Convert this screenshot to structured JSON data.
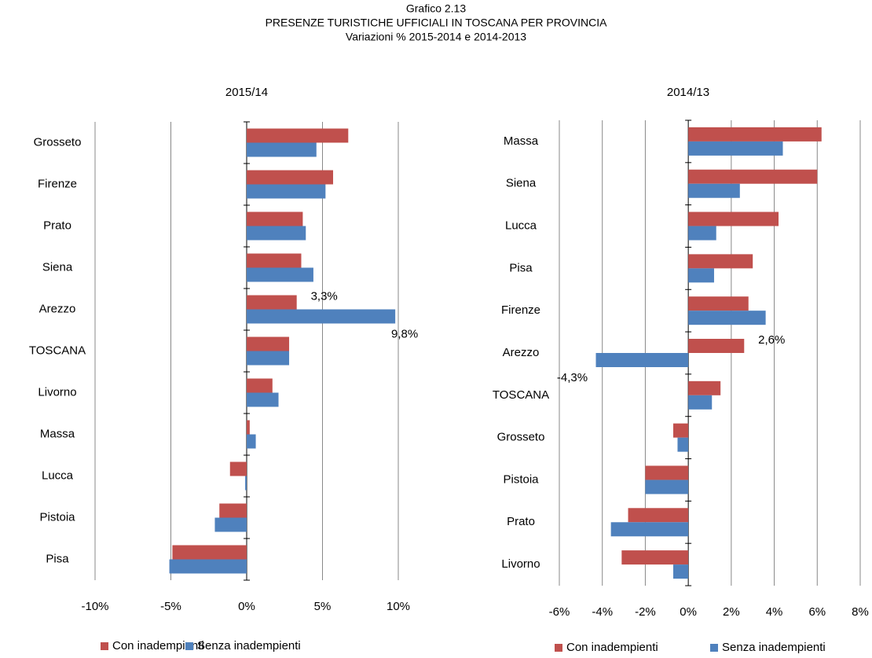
{
  "header": {
    "lines": [
      "Grafico 2.13",
      "PRESENZE TURISTICHE UFFICIALI IN TOSCANA PER PROVINCIA",
      "Variazioni % 2015-2014 e 2014-2013"
    ]
  },
  "chart_data": [
    {
      "type": "bar",
      "orientation": "horizontal",
      "title": "2015/14",
      "categories": [
        "Grosseto",
        "Firenze",
        "Prato",
        "Siena",
        "Arezzo",
        "TOSCANA",
        "Livorno",
        "Massa",
        "Lucca",
        "Pistoia",
        "Pisa"
      ],
      "series": [
        {
          "name": "Con inadempienti",
          "color": "#c0504d",
          "values": [
            6.7,
            5.7,
            3.7,
            3.6,
            3.3,
            2.8,
            1.7,
            0.2,
            -1.1,
            -1.8,
            -4.9
          ],
          "value_labels": [
            null,
            null,
            null,
            null,
            "3,3%",
            null,
            null,
            null,
            null,
            null,
            null
          ]
        },
        {
          "name": "Senza inadempienti",
          "color": "#4f81bd",
          "values": [
            4.6,
            5.2,
            3.9,
            4.4,
            9.8,
            2.8,
            2.1,
            0.6,
            -0.1,
            -2.1,
            -5.1
          ],
          "value_labels": [
            null,
            null,
            null,
            null,
            "9,8%",
            null,
            null,
            null,
            null,
            null,
            null
          ]
        }
      ],
      "xlim": [
        -10,
        10
      ],
      "xticks": [
        {
          "value": -10,
          "label": "-10%"
        },
        {
          "value": -5,
          "label": "-5%"
        },
        {
          "value": 0,
          "label": "0%"
        },
        {
          "value": 5,
          "label": "5%"
        },
        {
          "value": 10,
          "label": "10%"
        }
      ],
      "grid": true,
      "legend": "bottom"
    },
    {
      "type": "bar",
      "orientation": "horizontal",
      "title": "2014/13",
      "categories": [
        "Massa",
        "Siena",
        "Lucca",
        "Pisa",
        "Firenze",
        "Arezzo",
        "TOSCANA",
        "Grosseto",
        "Pistoia",
        "Prato",
        "Livorno"
      ],
      "series": [
        {
          "name": "Con inadempienti",
          "color": "#c0504d",
          "values": [
            6.2,
            6.0,
            4.2,
            3.0,
            2.8,
            2.6,
            1.5,
            -0.7,
            -2.0,
            -2.8,
            -3.1
          ],
          "value_labels": [
            null,
            null,
            null,
            null,
            null,
            "2,6%",
            null,
            null,
            null,
            null,
            null
          ]
        },
        {
          "name": "Senza inadempienti",
          "color": "#4f81bd",
          "values": [
            4.4,
            2.4,
            1.3,
            1.2,
            3.6,
            -4.3,
            1.1,
            -0.5,
            -2.0,
            -3.6,
            -0.7
          ],
          "value_labels": [
            null,
            null,
            null,
            null,
            null,
            "-4,3%",
            null,
            null,
            null,
            null,
            null
          ]
        }
      ],
      "xlim": [
        -6,
        8
      ],
      "xticks": [
        {
          "value": -6,
          "label": "-6%"
        },
        {
          "value": -4,
          "label": "-4%"
        },
        {
          "value": -2,
          "label": "-2%"
        },
        {
          "value": 0,
          "label": "0%"
        },
        {
          "value": 2,
          "label": "2%"
        },
        {
          "value": 4,
          "label": "4%"
        },
        {
          "value": 6,
          "label": "6%"
        },
        {
          "value": 8,
          "label": "8%"
        }
      ],
      "grid": true,
      "legend": "bottom"
    }
  ]
}
